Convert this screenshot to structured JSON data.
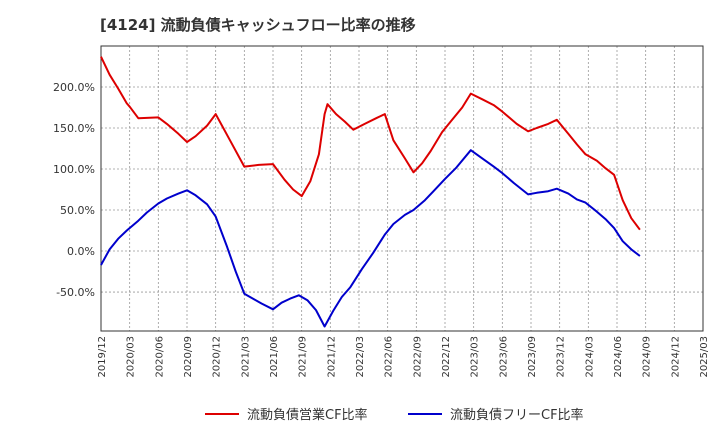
{
  "title": "[4124]  流動負債キャッシュフロー比率の推移",
  "chart_data": {
    "type": "line",
    "xlabel": "",
    "ylabel": "",
    "ylim": [
      -97.5,
      250
    ],
    "y_ticks": [
      -50,
      0,
      50,
      100,
      150,
      200
    ],
    "y_tick_labels": [
      "-50.0%",
      "0.0%",
      "50.0%",
      "100.0%",
      "150.0%",
      "200.0%"
    ],
    "x_tick_labels": [
      "2019/12",
      "2020/03",
      "2020/06",
      "2020/09",
      "2020/12",
      "2021/03",
      "2021/06",
      "2021/09",
      "2021/12",
      "2022/03",
      "2022/06",
      "2022/09",
      "2022/12",
      "2023/03",
      "2023/06",
      "2023/09",
      "2023/12",
      "2024/03",
      "2024/06",
      "2024/09",
      "2024/12",
      "2025/03"
    ],
    "grid": true,
    "legend_position": "bottom",
    "series": [
      {
        "name": "流動負債営業CF比率",
        "color": "#dd0000",
        "points": [
          [
            0,
            237
          ],
          [
            0.3,
            215
          ],
          [
            0.6,
            198
          ],
          [
            0.9,
            180
          ],
          [
            1.0,
            176
          ],
          [
            1.3,
            162
          ],
          [
            2.0,
            163
          ],
          [
            2.3,
            155
          ],
          [
            2.7,
            143
          ],
          [
            3.0,
            133
          ],
          [
            3.3,
            140
          ],
          [
            3.7,
            153
          ],
          [
            4.0,
            167
          ],
          [
            4.5,
            135
          ],
          [
            5.0,
            103
          ],
          [
            5.5,
            105
          ],
          [
            6.0,
            106
          ],
          [
            6.4,
            87
          ],
          [
            6.7,
            75
          ],
          [
            7.0,
            67
          ],
          [
            7.3,
            85
          ],
          [
            7.6,
            118
          ],
          [
            7.8,
            167
          ],
          [
            7.9,
            179
          ],
          [
            8.2,
            167
          ],
          [
            8.5,
            158
          ],
          [
            8.8,
            148
          ],
          [
            9.2,
            155
          ],
          [
            9.6,
            162
          ],
          [
            9.9,
            167
          ],
          [
            10.2,
            135
          ],
          [
            10.6,
            113
          ],
          [
            10.9,
            96
          ],
          [
            11.2,
            107
          ],
          [
            11.5,
            122
          ],
          [
            11.9,
            145
          ],
          [
            12.2,
            158
          ],
          [
            12.6,
            175
          ],
          [
            12.9,
            192
          ],
          [
            13.3,
            185
          ],
          [
            13.7,
            178
          ],
          [
            14.0,
            170
          ],
          [
            14.5,
            155
          ],
          [
            14.9,
            146
          ],
          [
            15.2,
            150
          ],
          [
            15.6,
            155
          ],
          [
            15.9,
            160
          ],
          [
            16.3,
            143
          ],
          [
            16.6,
            130
          ],
          [
            16.9,
            118
          ],
          [
            17.3,
            110
          ],
          [
            17.6,
            101
          ],
          [
            17.9,
            93
          ],
          [
            18.2,
            62
          ],
          [
            18.5,
            40
          ],
          [
            18.8,
            26
          ]
        ]
      },
      {
        "name": "流動負債フリーCF比率",
        "color": "#0000cc",
        "points": [
          [
            0,
            -17
          ],
          [
            0.3,
            2
          ],
          [
            0.6,
            15
          ],
          [
            0.9,
            25
          ],
          [
            1.3,
            37
          ],
          [
            1.6,
            47
          ],
          [
            2.0,
            58
          ],
          [
            2.3,
            64
          ],
          [
            2.7,
            70
          ],
          [
            3.0,
            74
          ],
          [
            3.3,
            68
          ],
          [
            3.7,
            57
          ],
          [
            4.0,
            42
          ],
          [
            4.4,
            5
          ],
          [
            4.7,
            -25
          ],
          [
            5.0,
            -52
          ],
          [
            5.3,
            -58
          ],
          [
            5.6,
            -64
          ],
          [
            6.0,
            -71
          ],
          [
            6.3,
            -63
          ],
          [
            6.6,
            -58
          ],
          [
            6.9,
            -54
          ],
          [
            7.2,
            -60
          ],
          [
            7.5,
            -72
          ],
          [
            7.8,
            -92
          ],
          [
            8.1,
            -73
          ],
          [
            8.4,
            -56
          ],
          [
            8.7,
            -44
          ],
          [
            9.1,
            -22
          ],
          [
            9.5,
            -2
          ],
          [
            9.9,
            20
          ],
          [
            10.2,
            33
          ],
          [
            10.6,
            44
          ],
          [
            10.9,
            50
          ],
          [
            11.3,
            62
          ],
          [
            11.6,
            73
          ],
          [
            12.0,
            88
          ],
          [
            12.4,
            102
          ],
          [
            12.9,
            123
          ],
          [
            13.3,
            113
          ],
          [
            13.7,
            103
          ],
          [
            14.0,
            95
          ],
          [
            14.4,
            83
          ],
          [
            14.9,
            69
          ],
          [
            15.2,
            71
          ],
          [
            15.6,
            73
          ],
          [
            15.9,
            76
          ],
          [
            16.3,
            70
          ],
          [
            16.6,
            63
          ],
          [
            16.9,
            59
          ],
          [
            17.3,
            48
          ],
          [
            17.6,
            39
          ],
          [
            17.9,
            28
          ],
          [
            18.2,
            12
          ],
          [
            18.5,
            2
          ],
          [
            18.8,
            -6
          ]
        ]
      }
    ]
  }
}
